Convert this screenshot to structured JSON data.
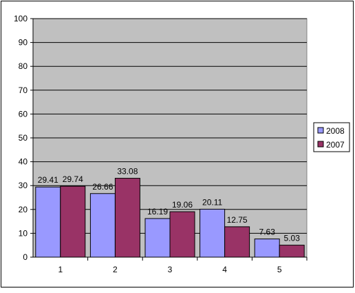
{
  "chart_data": {
    "type": "bar",
    "title": "",
    "xlabel": "",
    "ylabel": "",
    "categories": [
      "1",
      "2",
      "3",
      "4",
      "5"
    ],
    "series": [
      {
        "name": "2008",
        "color": "#9999ff",
        "values": [
          29.41,
          26.66,
          16.19,
          20.11,
          7.63
        ]
      },
      {
        "name": "2007",
        "color": "#993366",
        "values": [
          29.74,
          33.08,
          19.06,
          12.75,
          5.03
        ]
      }
    ],
    "ylim": [
      0,
      100
    ],
    "yticks": [
      "0",
      "10",
      "20",
      "30",
      "40",
      "50",
      "60",
      "70",
      "80",
      "90",
      "100"
    ],
    "data_labels": [
      [
        "29.41",
        "26.66",
        "16.19",
        "20.11",
        "7.63"
      ],
      [
        "29.74",
        "33.08",
        "19.06",
        "12.75",
        "5.03"
      ]
    ],
    "grid": true,
    "plot_background": "#c0c0c0",
    "legend_position": "right"
  }
}
